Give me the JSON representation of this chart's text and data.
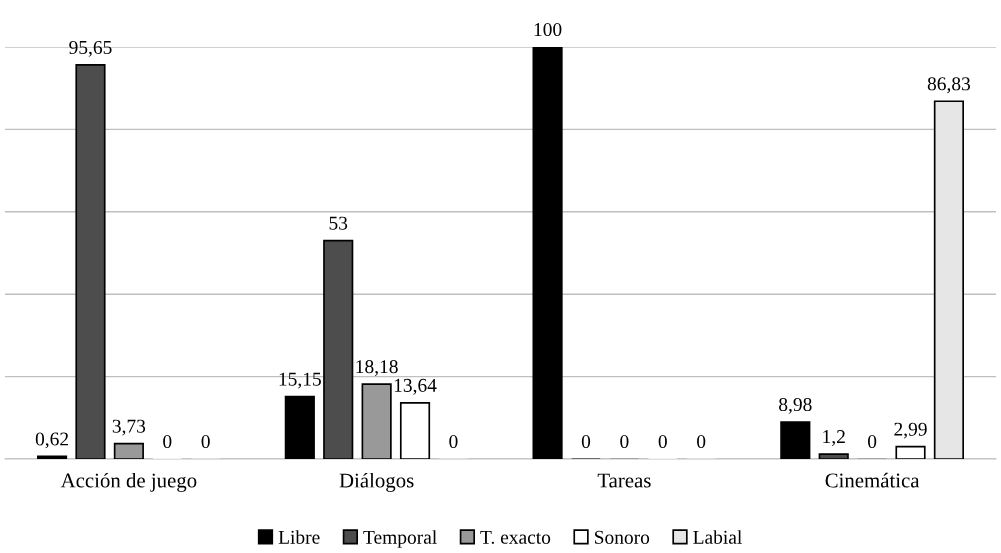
{
  "chart_data": {
    "type": "bar",
    "categories": [
      "Acción de juego",
      "Diálogos",
      "Tareas",
      "Cinemática"
    ],
    "series": [
      {
        "name": "Libre",
        "color": "#000000",
        "values": [
          0.62,
          15.15,
          100,
          8.98
        ],
        "value_labels": [
          "0,62",
          "15,15",
          "100",
          "8,98"
        ]
      },
      {
        "name": "Temporal",
        "color": "#4d4d4d",
        "values": [
          95.65,
          53,
          0,
          1.2
        ],
        "value_labels": [
          "95,65",
          "53",
          "0",
          "1,2"
        ]
      },
      {
        "name": "T. exacto",
        "color": "#999999",
        "values": [
          3.73,
          18.18,
          0,
          0
        ],
        "value_labels": [
          "3,73",
          "18,18",
          "0",
          "0"
        ]
      },
      {
        "name": "Sonoro",
        "color": "#ffffff",
        "values": [
          0,
          13.64,
          0,
          2.99
        ],
        "value_labels": [
          "0",
          "13,64",
          "0",
          "2,99"
        ]
      },
      {
        "name": "Labial",
        "color": "#e6e6e6",
        "values": [
          0,
          0,
          0,
          86.83
        ],
        "value_labels": [
          "0",
          "0",
          "0",
          "86,83"
        ]
      }
    ],
    "ylim": [
      0,
      100
    ],
    "yticks": [
      {
        "value": 0,
        "label": null
      },
      {
        "value": 20,
        "label": null
      },
      {
        "value": 40,
        "label": null
      },
      {
        "value": 60,
        "label": null
      },
      {
        "value": 80,
        "label": null
      },
      {
        "value": 100,
        "label": null
      }
    ],
    "tick_labels": "x",
    "grid": "y",
    "legend": "bottom"
  }
}
